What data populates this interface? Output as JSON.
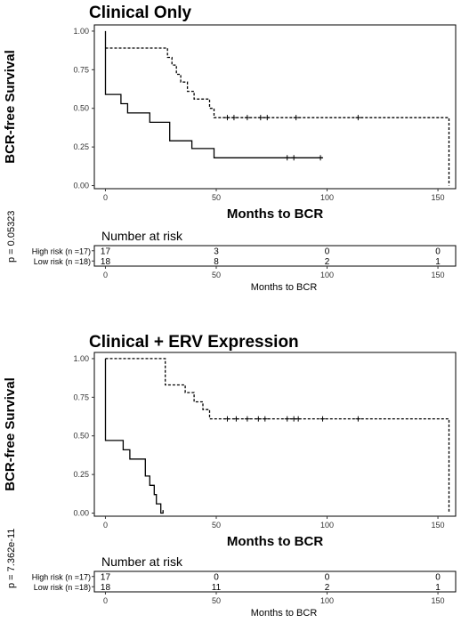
{
  "chart_data": [
    {
      "type": "line",
      "subtype": "kaplan-meier",
      "title": "Clinical Only",
      "xlabel": "Months to BCR",
      "ylabel": "BCR-free Survival",
      "xlim": [
        -5,
        158
      ],
      "ylim": [
        -0.02,
        1.04
      ],
      "x_ticks": [
        0,
        50,
        100,
        150
      ],
      "y_ticks": [
        "0.00",
        "0.25",
        "0.50",
        "0.75",
        "1.00"
      ],
      "p_value": "p = 0.05323",
      "series": [
        {
          "style": "solid",
          "points": [
            [
              0,
              1.0
            ],
            [
              0,
              0.59
            ],
            [
              7,
              0.59
            ],
            [
              7,
              0.53
            ],
            [
              10,
              0.53
            ],
            [
              10,
              0.47
            ],
            [
              20,
              0.47
            ],
            [
              20,
              0.41
            ],
            [
              29,
              0.41
            ],
            [
              29,
              0.29
            ],
            [
              39,
              0.29
            ],
            [
              39,
              0.24
            ],
            [
              49,
              0.24
            ],
            [
              49,
              0.18
            ],
            [
              98,
              0.18
            ]
          ],
          "censors": [
            [
              82,
              0.18
            ],
            [
              85,
              0.18
            ],
            [
              97,
              0.18
            ]
          ]
        },
        {
          "style": "dashed",
          "points": [
            [
              0,
              0.89
            ],
            [
              28,
              0.89
            ],
            [
              28,
              0.83
            ],
            [
              30,
              0.83
            ],
            [
              30,
              0.78
            ],
            [
              32,
              0.78
            ],
            [
              32,
              0.72
            ],
            [
              34,
              0.72
            ],
            [
              34,
              0.67
            ],
            [
              37,
              0.67
            ],
            [
              37,
              0.61
            ],
            [
              40,
              0.61
            ],
            [
              40,
              0.56
            ],
            [
              47,
              0.56
            ],
            [
              47,
              0.5
            ],
            [
              49,
              0.5
            ],
            [
              49,
              0.44
            ],
            [
              155,
              0.44
            ],
            [
              155,
              0.0
            ]
          ],
          "censors": [
            [
              55,
              0.44
            ],
            [
              58,
              0.44
            ],
            [
              64,
              0.44
            ],
            [
              70,
              0.44
            ],
            [
              73,
              0.44
            ],
            [
              86,
              0.44
            ],
            [
              114,
              0.44
            ]
          ]
        }
      ],
      "risk_table": {
        "title": "Number at risk",
        "xlabel": "Months to BCR",
        "times": [
          0,
          50,
          100,
          150
        ],
        "rows": [
          {
            "label": "High risk (n =17)",
            "values": [
              "17",
              "3",
              "0",
              "0"
            ]
          },
          {
            "label": "Low risk (n =18)",
            "values": [
              "18",
              "8",
              "2",
              "1"
            ]
          }
        ]
      }
    },
    {
      "type": "line",
      "subtype": "kaplan-meier",
      "title": "Clinical + ERV Expression",
      "xlabel": "Months to BCR",
      "ylabel": "BCR-free Survival",
      "xlim": [
        -5,
        158
      ],
      "ylim": [
        -0.02,
        1.04
      ],
      "x_ticks": [
        0,
        50,
        100,
        150
      ],
      "y_ticks": [
        "0.00",
        "0.25",
        "0.50",
        "0.75",
        "1.00"
      ],
      "p_value": "p = 7.362e-11",
      "series": [
        {
          "style": "solid",
          "points": [
            [
              0,
              1.0
            ],
            [
              0,
              0.47
            ],
            [
              8,
              0.47
            ],
            [
              8,
              0.41
            ],
            [
              11,
              0.41
            ],
            [
              11,
              0.35
            ],
            [
              18,
              0.35
            ],
            [
              18,
              0.24
            ],
            [
              20,
              0.24
            ],
            [
              20,
              0.18
            ],
            [
              22,
              0.18
            ],
            [
              22,
              0.12
            ],
            [
              23,
              0.12
            ],
            [
              23,
              0.06
            ],
            [
              25,
              0.06
            ],
            [
              25,
              0.0
            ],
            [
              26,
              0.0
            ],
            [
              26,
              0.02
            ]
          ],
          "censors": []
        },
        {
          "style": "dashed",
          "points": [
            [
              0,
              1.0
            ],
            [
              27,
              1.0
            ],
            [
              27,
              0.83
            ],
            [
              36,
              0.83
            ],
            [
              36,
              0.78
            ],
            [
              40,
              0.78
            ],
            [
              40,
              0.72
            ],
            [
              44,
              0.72
            ],
            [
              44,
              0.67
            ],
            [
              47,
              0.67
            ],
            [
              47,
              0.61
            ],
            [
              155,
              0.61
            ],
            [
              155,
              0.0
            ]
          ],
          "censors": [
            [
              55,
              0.61
            ],
            [
              59,
              0.61
            ],
            [
              64,
              0.61
            ],
            [
              69,
              0.61
            ],
            [
              72,
              0.61
            ],
            [
              82,
              0.61
            ],
            [
              85,
              0.61
            ],
            [
              87,
              0.61
            ],
            [
              98,
              0.61
            ],
            [
              114,
              0.61
            ]
          ]
        }
      ],
      "risk_table": {
        "title": "Number at risk",
        "xlabel": "Months to BCR",
        "times": [
          0,
          50,
          100,
          150
        ],
        "rows": [
          {
            "label": "High risk (n =17)",
            "values": [
              "17",
              "0",
              "0",
              "0"
            ]
          },
          {
            "label": "Low risk (n =18)",
            "values": [
              "18",
              "11",
              "2",
              "1"
            ]
          }
        ]
      }
    }
  ]
}
